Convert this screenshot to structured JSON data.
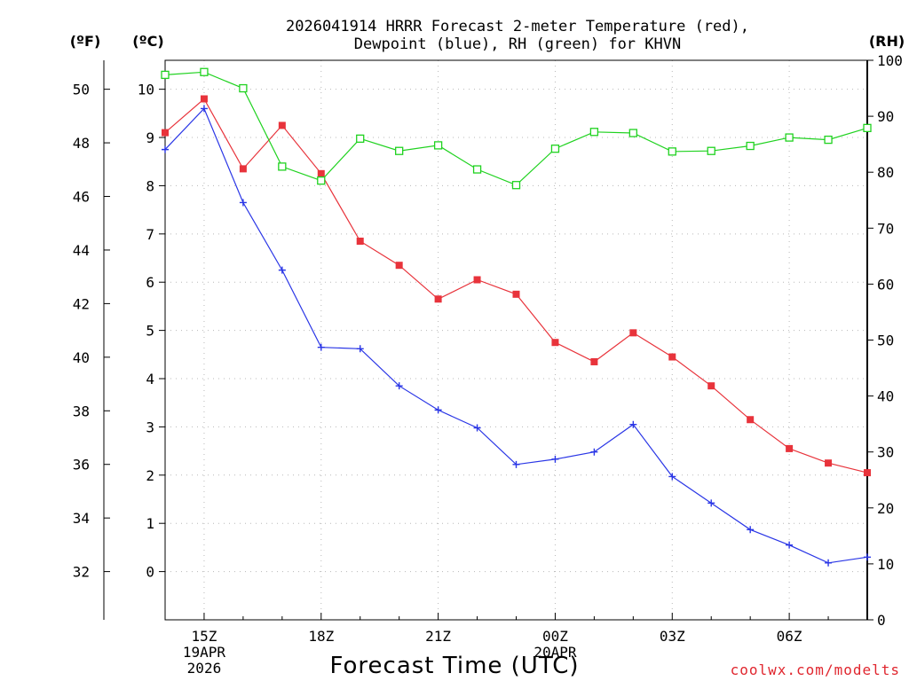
{
  "chart_data": {
    "type": "line",
    "title": [
      "2026041914 HRRR Forecast 2-meter Temperature (red),",
      "Dewpoint (blue), RH (green) for KHVN"
    ],
    "xlabel": "Forecast Time (UTC)",
    "credit": "coolwx.com/modelts",
    "units": {
      "fahrenheit": "(ºF)",
      "celsius": "(ºC)",
      "rh": "(RH)"
    },
    "x_hours": [
      14,
      15,
      16,
      17,
      18,
      19,
      20,
      21,
      22,
      23,
      24,
      25,
      26,
      27,
      28,
      29,
      30,
      31,
      32
    ],
    "xlim": [
      14,
      32
    ],
    "x_ticks": [
      {
        "hour": 15,
        "lines": [
          "15Z",
          "19APR",
          "2026"
        ]
      },
      {
        "hour": 18,
        "lines": [
          "18Z"
        ]
      },
      {
        "hour": 21,
        "lines": [
          "21Z"
        ]
      },
      {
        "hour": 24,
        "lines": [
          "00Z",
          "20APR"
        ]
      },
      {
        "hour": 27,
        "lines": [
          "03Z"
        ]
      },
      {
        "hour": 30,
        "lines": [
          "06Z"
        ]
      }
    ],
    "y_celsius": {
      "range": [
        -1.0,
        10.6
      ],
      "ticks": [
        0,
        1,
        2,
        3,
        4,
        5,
        6,
        7,
        8,
        9,
        10
      ]
    },
    "y_fahrenheit": {
      "ticks": [
        32,
        34,
        36,
        38,
        40,
        42,
        44,
        46,
        48,
        50
      ]
    },
    "y_rh": {
      "range": [
        0,
        100
      ],
      "ticks": [
        0,
        10,
        20,
        30,
        40,
        50,
        60,
        70,
        80,
        90,
        100
      ]
    },
    "series": [
      {
        "name": "2-meter Temperature",
        "axis": "celsius",
        "color": "#e8333b",
        "marker": "filled-square",
        "values": [
          9.1,
          9.8,
          8.35,
          9.25,
          8.25,
          6.85,
          6.35,
          5.65,
          6.05,
          5.75,
          4.75,
          4.35,
          4.95,
          4.45,
          3.85,
          3.15,
          2.55,
          2.25,
          2.05
        ]
      },
      {
        "name": "Dewpoint",
        "axis": "celsius",
        "color": "#2a36e6",
        "marker": "plus",
        "values": [
          8.75,
          9.6,
          7.65,
          6.25,
          4.65,
          4.62,
          3.85,
          3.35,
          2.98,
          2.22,
          2.33,
          2.48,
          3.05,
          1.97,
          1.42,
          0.87,
          0.55,
          0.18,
          0.3
        ]
      },
      {
        "name": "RH",
        "axis": "rh",
        "color": "#1fd21f",
        "marker": "open-square",
        "values": [
          97.4,
          97.9,
          95.0,
          81.0,
          78.5,
          86.0,
          83.8,
          84.8,
          80.5,
          77.7,
          84.2,
          87.2,
          87.0,
          83.7,
          83.8,
          84.7,
          86.2,
          85.8,
          87.9
        ]
      }
    ]
  }
}
